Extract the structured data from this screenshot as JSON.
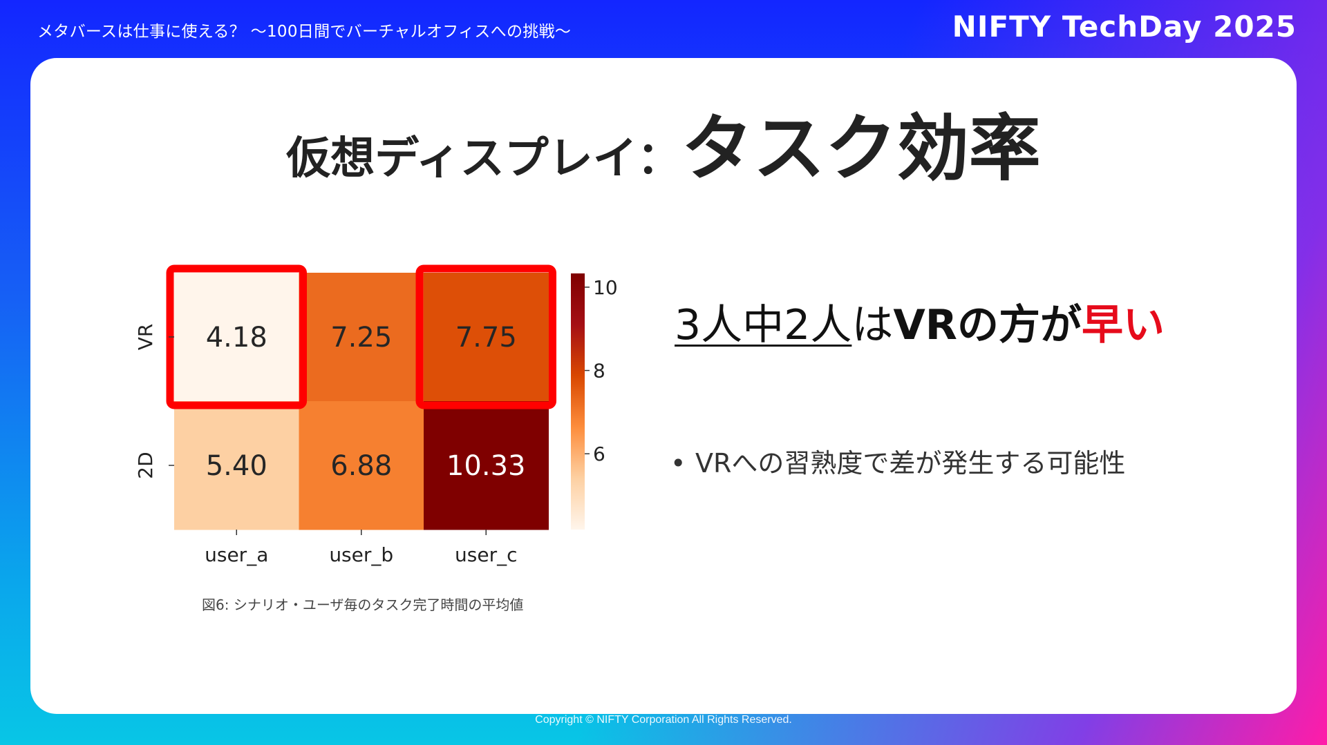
{
  "header": {
    "title": "メタバースは仕事に使える？ 〜100日間でバーチャルオフィスへの挑戦〜",
    "brand": "NIFTY TechDay 2025"
  },
  "slide": {
    "title_lead": "仮想ディスプレイ：",
    "title_main": "タスク効率"
  },
  "chart_data": {
    "type": "heatmap",
    "rows": [
      "VR",
      "2D"
    ],
    "columns": [
      "user_a",
      "user_b",
      "user_c"
    ],
    "values": [
      [
        4.18,
        7.25,
        7.75
      ],
      [
        5.4,
        6.88,
        10.33
      ]
    ],
    "value_labels": [
      [
        "4.18",
        "7.25",
        "7.75"
      ],
      [
        "5.40",
        "6.88",
        "10.33"
      ]
    ],
    "colorbar": {
      "min": 4.18,
      "max": 10.33,
      "ticks": [
        "6",
        "8",
        "10"
      ],
      "tick_values": [
        6,
        8,
        10
      ]
    },
    "colormap": [
      "#fff5eb",
      "#fdd0a2",
      "#fd8d3c",
      "#d94801",
      "#a50f15",
      "#7f0000"
    ],
    "highlight_color": "#ff0000",
    "highlighted_cells": [
      [
        0,
        0
      ],
      [
        0,
        2
      ]
    ],
    "caption": "図6: シナリオ・ユーザ毎のタスク完了時間の平均値"
  },
  "findings": {
    "headline_part1": "3人中2人",
    "headline_part2": "は",
    "headline_part3": "VRの方が",
    "headline_part4": "早い",
    "bullet_marker": "•",
    "bullet": "VRへの習熟度で差が発生する可能性"
  },
  "footer": {
    "copyright": "Copyright © NIFTY Corporation All Rights Reserved."
  }
}
